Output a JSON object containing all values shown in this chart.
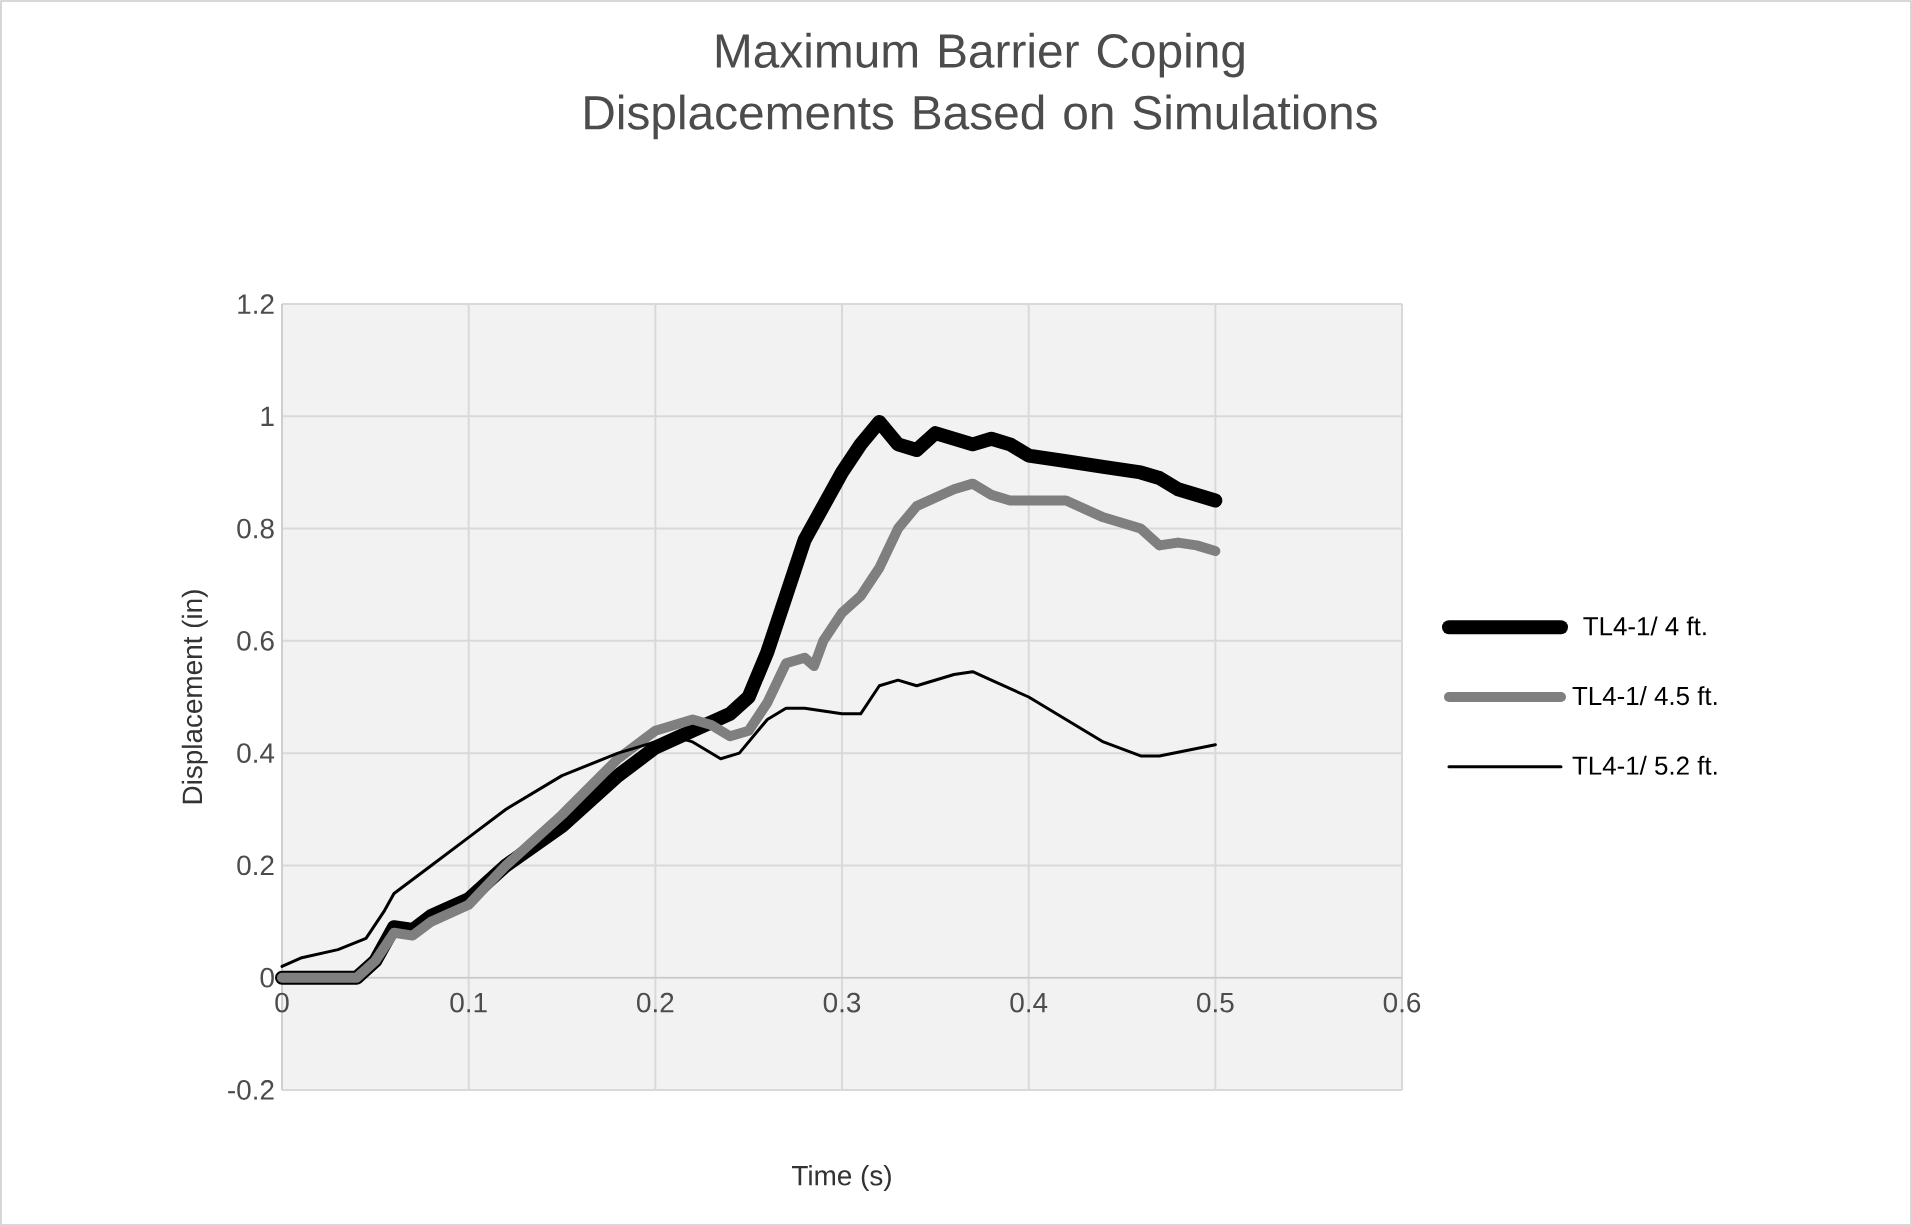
{
  "chart_data": {
    "type": "line",
    "title": "Maximum Barrier Coping Displacements Based on Simulations",
    "xlabel": "Time (s)",
    "ylabel": "Displacement (in)",
    "xlim": [
      0,
      0.6
    ],
    "xticks": [
      0,
      0.1,
      0.2,
      0.3,
      0.4,
      0.5,
      0.6
    ],
    "ylim": [
      -0.2,
      1.2
    ],
    "yticks": [
      -0.2,
      0,
      0.2,
      0.4,
      0.6,
      0.8,
      1,
      1.2
    ],
    "grid": true,
    "legend": "right",
    "marker": "none",
    "line_style": "solid",
    "series": [
      {
        "name": "TL4-1/ 4  ft.",
        "color": "#000000",
        "x": [
          0,
          0.04,
          0.05,
          0.06,
          0.07,
          0.08,
          0.1,
          0.12,
          0.15,
          0.18,
          0.2,
          0.22,
          0.24,
          0.25,
          0.26,
          0.27,
          0.28,
          0.29,
          0.3,
          0.31,
          0.32,
          0.33,
          0.34,
          0.35,
          0.37,
          0.38,
          0.39,
          0.4,
          0.42,
          0.44,
          0.46,
          0.47,
          0.48,
          0.5
        ],
        "values": [
          0,
          0,
          0.03,
          0.09,
          0.085,
          0.11,
          0.14,
          0.2,
          0.27,
          0.36,
          0.41,
          0.44,
          0.47,
          0.5,
          0.58,
          0.68,
          0.78,
          0.84,
          0.9,
          0.95,
          0.99,
          0.95,
          0.94,
          0.97,
          0.95,
          0.96,
          0.95,
          0.93,
          0.92,
          0.91,
          0.9,
          0.89,
          0.87,
          0.85
        ]
      },
      {
        "name": "TL4-1/ 4.5 ft.",
        "color": "#7f7f7f",
        "x": [
          0,
          0.04,
          0.05,
          0.06,
          0.07,
          0.08,
          0.1,
          0.12,
          0.15,
          0.18,
          0.2,
          0.22,
          0.23,
          0.24,
          0.25,
          0.26,
          0.27,
          0.28,
          0.285,
          0.29,
          0.3,
          0.31,
          0.32,
          0.33,
          0.34,
          0.36,
          0.37,
          0.38,
          0.39,
          0.42,
          0.44,
          0.46,
          0.47,
          0.48,
          0.49,
          0.5
        ],
        "values": [
          0,
          0,
          0.03,
          0.08,
          0.075,
          0.1,
          0.13,
          0.2,
          0.29,
          0.39,
          0.44,
          0.46,
          0.45,
          0.43,
          0.44,
          0.49,
          0.56,
          0.57,
          0.555,
          0.6,
          0.65,
          0.68,
          0.73,
          0.8,
          0.84,
          0.87,
          0.88,
          0.86,
          0.85,
          0.85,
          0.82,
          0.8,
          0.77,
          0.775,
          0.77,
          0.76
        ]
      },
      {
        "name": "TL4-1/ 5.2 ft.",
        "color": "#000000",
        "x": [
          0,
          0.01,
          0.03,
          0.045,
          0.055,
          0.06,
          0.08,
          0.1,
          0.12,
          0.15,
          0.18,
          0.2,
          0.21,
          0.22,
          0.235,
          0.245,
          0.26,
          0.27,
          0.28,
          0.29,
          0.3,
          0.31,
          0.32,
          0.33,
          0.34,
          0.36,
          0.37,
          0.38,
          0.4,
          0.42,
          0.44,
          0.46,
          0.47,
          0.5
        ],
        "values": [
          0.02,
          0.035,
          0.05,
          0.07,
          0.12,
          0.15,
          0.2,
          0.25,
          0.3,
          0.36,
          0.4,
          0.42,
          0.43,
          0.42,
          0.39,
          0.4,
          0.46,
          0.48,
          0.48,
          0.475,
          0.47,
          0.47,
          0.52,
          0.53,
          0.52,
          0.54,
          0.545,
          0.53,
          0.5,
          0.46,
          0.42,
          0.395,
          0.395,
          0.415
        ]
      }
    ]
  }
}
